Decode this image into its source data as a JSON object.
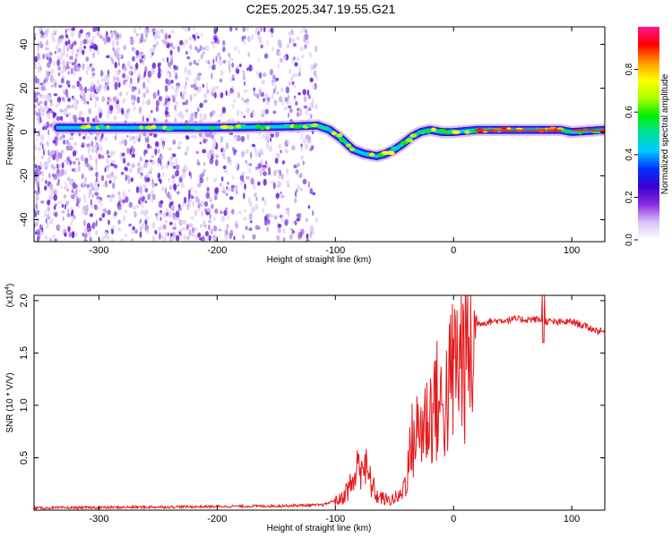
{
  "title": "C2E5.2025.347.19.55.G21",
  "chart_data": [
    {
      "type": "heatmap",
      "name": "spectrogram",
      "xlabel": "Height of straight line (km)",
      "ylabel": "Frequency (Hz)",
      "xlim": [
        -355,
        128
      ],
      "ylim": [
        -50,
        48
      ],
      "xticks": [
        -300,
        -200,
        -100,
        0,
        100
      ],
      "yticks": [
        -40,
        -20,
        0,
        20,
        40
      ],
      "ridge": {
        "x": [
          -330,
          -250,
          -200,
          -140,
          -115,
          -105,
          -95,
          -85,
          -75,
          -65,
          -58,
          -50,
          -42,
          -35,
          -28,
          -20,
          -10,
          0,
          20,
          60,
          90,
          100,
          128
        ],
        "y": [
          2,
          2,
          2,
          2.5,
          3,
          1,
          -3,
          -8,
          -10,
          -11,
          -10,
          -8,
          -5,
          -2,
          0,
          1,
          0,
          0,
          1,
          1,
          1,
          0,
          1
        ]
      },
      "noise_band": [
        -355,
        -125
      ],
      "colorbar": {
        "label": "Normalized spectral amplitude",
        "range": [
          0,
          1
        ],
        "ticks": [
          "0.0",
          "0.2",
          "0.4",
          "0.6",
          "0.8"
        ],
        "colors": [
          "#ffffff",
          "#d9c3f5",
          "#8a2be2",
          "#3a00d0",
          "#0030ff",
          "#00c8ff",
          "#00e0a0",
          "#00f000",
          "#b0ff00",
          "#ffff00",
          "#ff9900",
          "#ff0000",
          "#ff1493"
        ]
      }
    },
    {
      "type": "line",
      "name": "snr",
      "xlabel": "Height of straight line (km)",
      "ylabel": "SNR (10 * V/V)",
      "scale_label": "(x10",
      "scale_exp": "4",
      "xlim": [
        -355,
        128
      ],
      "ylim": [
        0,
        2.05
      ],
      "xticks": [
        -300,
        -200,
        -100,
        0,
        100
      ],
      "yticks": [
        "0.5",
        "1.0",
        "1.5",
        "2.0"
      ],
      "ytick_values": [
        0.5,
        1.0,
        1.5,
        2.0
      ],
      "line_color": "#e41a1c",
      "envelope": {
        "x": [
          -355,
          -250,
          -150,
          -110,
          -95,
          -85,
          -78,
          -72,
          -65,
          -55,
          -45,
          -40,
          -35,
          -28,
          -22,
          -15,
          -10,
          -5,
          0,
          10,
          20,
          30,
          50,
          70,
          80,
          90,
          100,
          110,
          120,
          128
        ],
        "y": [
          0.02,
          0.03,
          0.04,
          0.05,
          0.12,
          0.3,
          0.55,
          0.35,
          0.15,
          0.1,
          0.15,
          0.35,
          0.75,
          0.9,
          1.0,
          1.2,
          1.1,
          1.25,
          1.55,
          1.72,
          1.78,
          1.8,
          1.82,
          1.82,
          1.8,
          1.79,
          1.8,
          1.76,
          1.72,
          1.7
        ]
      }
    }
  ]
}
